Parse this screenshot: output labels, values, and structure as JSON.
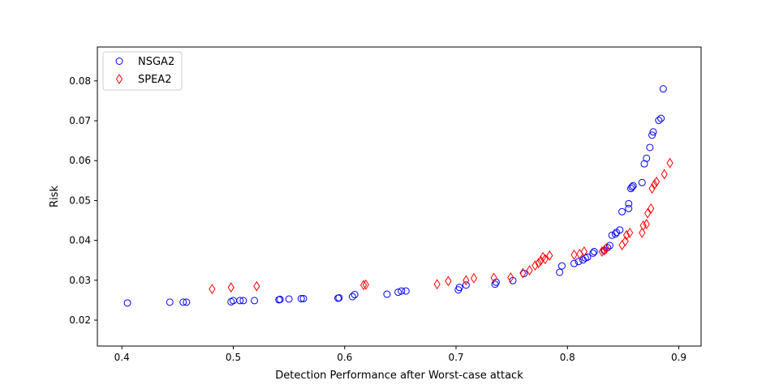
{
  "chart_data": {
    "type": "scatter",
    "title": "",
    "xlabel": "Detection Performance after Worst-case attack",
    "ylabel": "Risk",
    "xlim": [
      0.378,
      0.92
    ],
    "ylim": [
      0.0135,
      0.0885
    ],
    "xticks": [
      0.4,
      0.5,
      0.6,
      0.7,
      0.8,
      0.9
    ],
    "xtick_labels": [
      "0.4",
      "0.5",
      "0.6",
      "0.7",
      "0.8",
      "0.9"
    ],
    "yticks": [
      0.02,
      0.03,
      0.04,
      0.05,
      0.06,
      0.07,
      0.08
    ],
    "ytick_labels": [
      "0.02",
      "0.03",
      "0.04",
      "0.05",
      "0.06",
      "0.07",
      "0.08"
    ],
    "grid": false,
    "legend_position": "top-left",
    "series": [
      {
        "name": "NSGA2",
        "marker": "circle",
        "color": "#0000ff",
        "points": [
          [
            0.405,
            0.0243
          ],
          [
            0.443,
            0.0245
          ],
          [
            0.455,
            0.0245
          ],
          [
            0.458,
            0.0245
          ],
          [
            0.498,
            0.0246
          ],
          [
            0.5,
            0.0249
          ],
          [
            0.506,
            0.0249
          ],
          [
            0.509,
            0.0249
          ],
          [
            0.519,
            0.0249
          ],
          [
            0.541,
            0.0251
          ],
          [
            0.542,
            0.0252
          ],
          [
            0.55,
            0.0253
          ],
          [
            0.561,
            0.0254
          ],
          [
            0.563,
            0.0254
          ],
          [
            0.594,
            0.0255
          ],
          [
            0.595,
            0.0256
          ],
          [
            0.607,
            0.0259
          ],
          [
            0.609,
            0.0264
          ],
          [
            0.638,
            0.0265
          ],
          [
            0.648,
            0.027
          ],
          [
            0.651,
            0.0273
          ],
          [
            0.655,
            0.0273
          ],
          [
            0.702,
            0.0276
          ],
          [
            0.703,
            0.0282
          ],
          [
            0.709,
            0.0288
          ],
          [
            0.735,
            0.029
          ],
          [
            0.736,
            0.0295
          ],
          [
            0.751,
            0.0299
          ],
          [
            0.761,
            0.0317
          ],
          [
            0.793,
            0.032
          ],
          [
            0.795,
            0.0336
          ],
          [
            0.806,
            0.0342
          ],
          [
            0.81,
            0.0347
          ],
          [
            0.814,
            0.0351
          ],
          [
            0.816,
            0.0356
          ],
          [
            0.818,
            0.0358
          ],
          [
            0.823,
            0.0368
          ],
          [
            0.824,
            0.0372
          ],
          [
            0.833,
            0.0375
          ],
          [
            0.836,
            0.0382
          ],
          [
            0.838,
            0.0387
          ],
          [
            0.84,
            0.0413
          ],
          [
            0.843,
            0.0416
          ],
          [
            0.844,
            0.042
          ],
          [
            0.847,
            0.0426
          ],
          [
            0.849,
            0.0472
          ],
          [
            0.855,
            0.048
          ],
          [
            0.855,
            0.0492
          ],
          [
            0.857,
            0.053
          ],
          [
            0.858,
            0.0534
          ],
          [
            0.859,
            0.0537
          ],
          [
            0.867,
            0.0545
          ],
          [
            0.869,
            0.0592
          ],
          [
            0.871,
            0.0606
          ],
          [
            0.874,
            0.0633
          ],
          [
            0.876,
            0.0664
          ],
          [
            0.877,
            0.0672
          ],
          [
            0.882,
            0.0701
          ],
          [
            0.884,
            0.0706
          ],
          [
            0.886,
            0.078
          ]
        ]
      },
      {
        "name": "SPEA2",
        "marker": "diamond",
        "color": "#ff0000",
        "points": [
          [
            0.481,
            0.0278
          ],
          [
            0.498,
            0.0282
          ],
          [
            0.521,
            0.0285
          ],
          [
            0.617,
            0.0288
          ],
          [
            0.619,
            0.0289
          ],
          [
            0.683,
            0.029
          ],
          [
            0.693,
            0.0298
          ],
          [
            0.709,
            0.03
          ],
          [
            0.716,
            0.0305
          ],
          [
            0.734,
            0.0306
          ],
          [
            0.749,
            0.0307
          ],
          [
            0.76,
            0.0318
          ],
          [
            0.766,
            0.0325
          ],
          [
            0.771,
            0.0337
          ],
          [
            0.774,
            0.0343
          ],
          [
            0.776,
            0.0349
          ],
          [
            0.778,
            0.0358
          ],
          [
            0.78,
            0.0353
          ],
          [
            0.784,
            0.0362
          ],
          [
            0.806,
            0.0364
          ],
          [
            0.811,
            0.0366
          ],
          [
            0.815,
            0.0372
          ],
          [
            0.831,
            0.0372
          ],
          [
            0.833,
            0.0375
          ],
          [
            0.835,
            0.038
          ],
          [
            0.849,
            0.0388
          ],
          [
            0.852,
            0.0398
          ],
          [
            0.853,
            0.0413
          ],
          [
            0.856,
            0.0419
          ],
          [
            0.867,
            0.0419
          ],
          [
            0.868,
            0.0437
          ],
          [
            0.871,
            0.0441
          ],
          [
            0.872,
            0.0468
          ],
          [
            0.875,
            0.048
          ],
          [
            0.876,
            0.053
          ],
          [
            0.878,
            0.054
          ],
          [
            0.88,
            0.0547
          ],
          [
            0.887,
            0.0566
          ],
          [
            0.892,
            0.0594
          ]
        ]
      }
    ]
  }
}
